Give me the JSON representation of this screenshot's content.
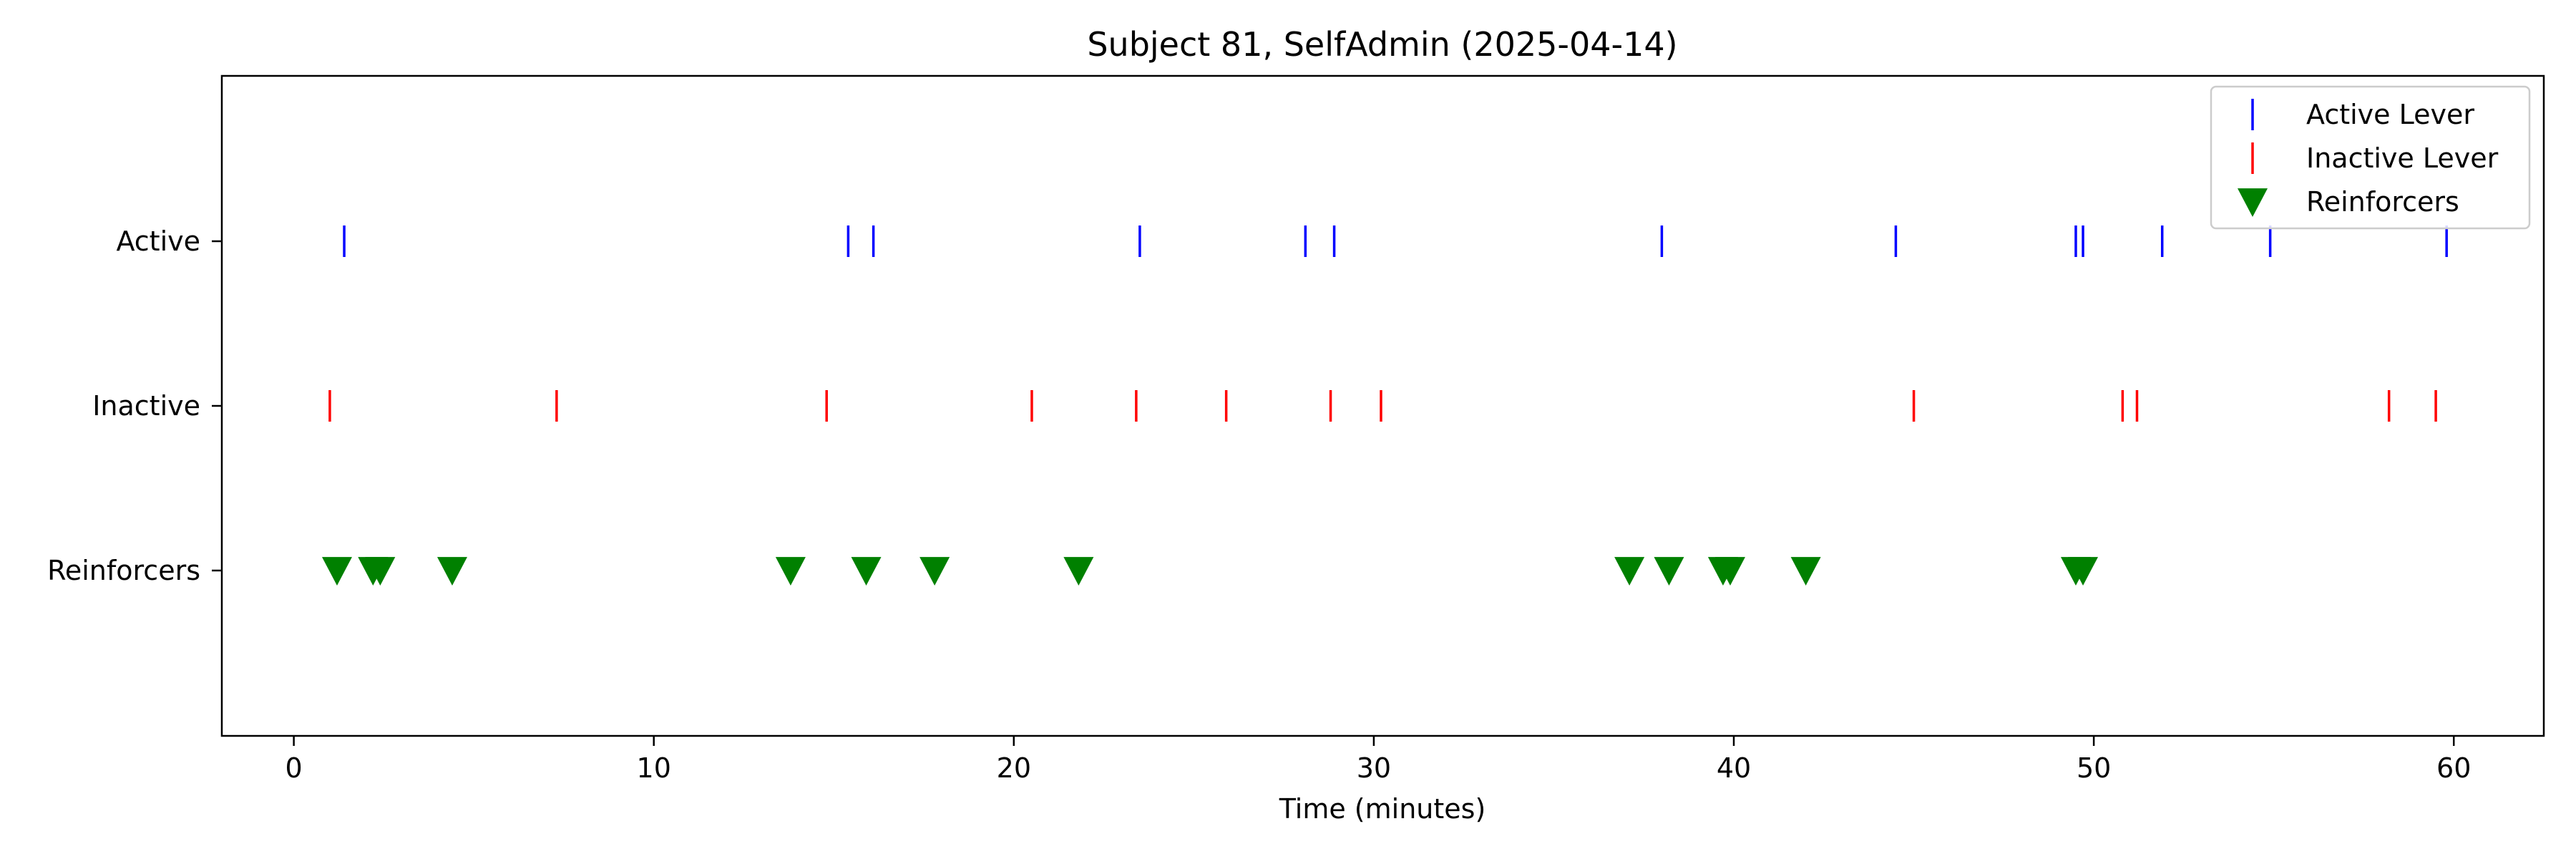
{
  "chart_data": {
    "type": "scatter",
    "title": "Subject 81, SelfAdmin (2025-04-14)",
    "xlabel": "Time (minutes)",
    "ylabel": "",
    "xlim": [
      -2,
      62.5
    ],
    "x_ticks": [
      0,
      10,
      20,
      30,
      40,
      50,
      60
    ],
    "categories": [
      "Active",
      "Inactive",
      "Reinforcers"
    ],
    "grid": false,
    "legend_position": "top-right",
    "series": [
      {
        "name": "Active Lever",
        "row": "Active",
        "marker": "vertical-line",
        "color": "#0000ff",
        "x": [
          1.4,
          15.4,
          16.1,
          23.5,
          28.1,
          28.9,
          38.0,
          44.5,
          49.5,
          49.7,
          51.9,
          54.9,
          59.8
        ]
      },
      {
        "name": "Inactive Lever",
        "row": "Inactive",
        "marker": "vertical-line",
        "color": "#ff0000",
        "x": [
          1.0,
          7.3,
          14.8,
          20.5,
          23.4,
          25.9,
          28.8,
          30.2,
          45.0,
          50.8,
          51.2,
          58.2,
          59.5
        ]
      },
      {
        "name": "Reinforcers",
        "row": "Reinforcers",
        "marker": "triangle-down",
        "color": "#008000",
        "x": [
          1.2,
          2.2,
          2.4,
          4.4,
          13.8,
          15.9,
          17.8,
          21.8,
          37.1,
          38.2,
          39.7,
          39.9,
          42.0,
          49.5,
          49.7
        ]
      }
    ]
  }
}
